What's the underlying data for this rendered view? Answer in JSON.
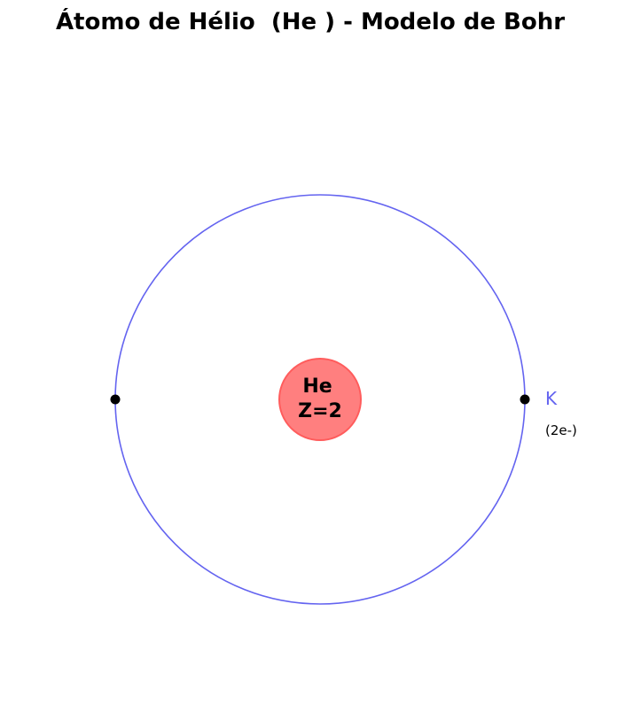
{
  "title": "Átomo de Hélio  (He ) - Modelo de Bohr",
  "nucleus": {
    "symbol": "He",
    "atomic_number_label": "Z=2",
    "fill_color": "#ff7f7f",
    "stroke_color": "#ff5c5c"
  },
  "shells": [
    {
      "name": "K",
      "electron_label": "(2e-)",
      "electron_count": 2,
      "color": "#6464f0"
    }
  ],
  "electron_color": "#000000"
}
